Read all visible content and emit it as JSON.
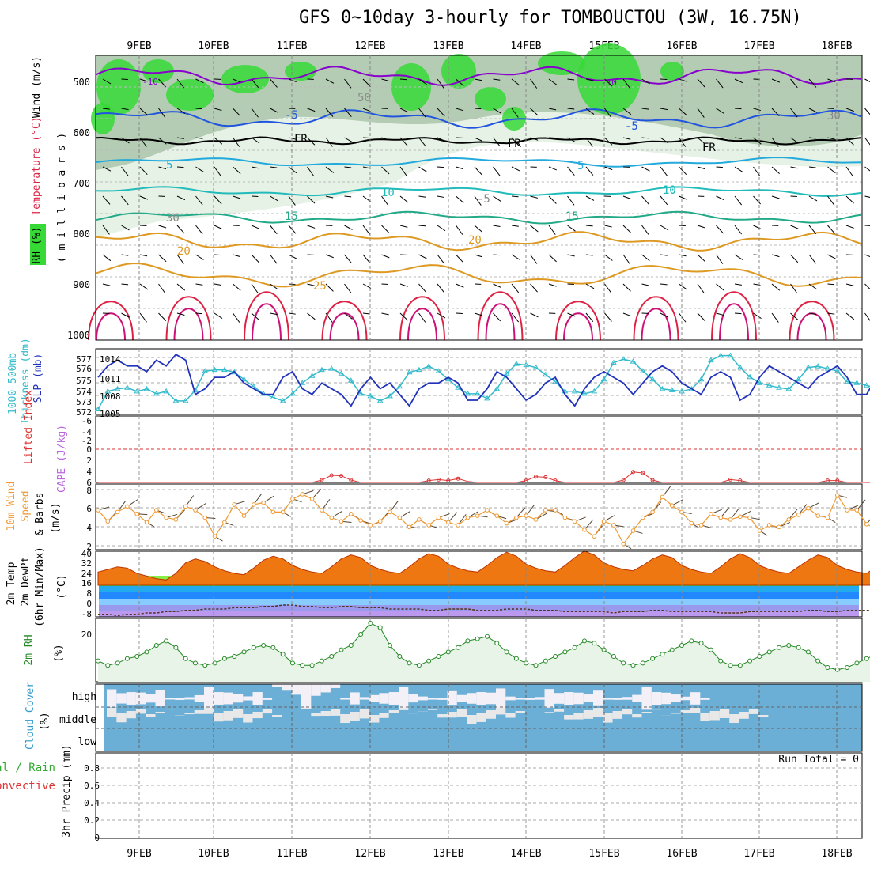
{
  "title": "GFS 0~10day 3-hourly for TOMBOUCTOU (3W, 16.75N)",
  "dates": [
    "9FEB",
    "10FEB",
    "11FEB",
    "12FEB",
    "13FEB",
    "14FEB",
    "15FEB",
    "16FEB",
    "17FEB",
    "18FEB"
  ],
  "colors": {
    "rh_fill_light": "#e6f2e6",
    "rh_fill_mid": "#b4ccb4",
    "rh_fill_green": "#36d936",
    "temp_purple": "#8800cc",
    "temp_blue": "#2255dd",
    "temp_lightblue": "#22aadd",
    "temp_teal": "#22bbbb",
    "temp_green": "#22aa88",
    "temp_orange": "#dd9922",
    "temp_red": "#dd2244",
    "slp": "#2233bb",
    "thickness": "#33bbcc",
    "wind10m": "#ee9933",
    "rh2m": "#228822",
    "cloud": "#6baed6",
    "cape_axis": "#dd3333"
  },
  "panels": {
    "upper": {
      "yaxis_label": "(millibars)",
      "side_labels": [
        "Wind (m/s)",
        "Temperature (°C)",
        "RH (%)"
      ],
      "ticks": [
        "500",
        "600",
        "700",
        "800",
        "900",
        "1000"
      ],
      "contour_labels": [
        "-10",
        "-5",
        "FR",
        "5",
        "10",
        "15",
        "20",
        "25",
        "30",
        "50",
        "10",
        "-5",
        "FR",
        "5",
        "10",
        "15",
        "20",
        "-10",
        "30",
        "-5",
        "FR"
      ]
    },
    "slp_thick": {
      "side_labels": [
        "Thickness (dm)",
        "1000-500mb",
        "SLP (mb)"
      ],
      "left_ticks": [
        "577",
        "576",
        "575",
        "574",
        "573",
        "572"
      ],
      "right_ticks": [
        "1014",
        "1011",
        "1008",
        "1005"
      ]
    },
    "cape": {
      "side_labels": [
        "Lifted Index",
        "CAPE (J/kg)"
      ],
      "ticks": [
        "-6",
        "-4",
        "-2",
        "0",
        "2",
        "4",
        "6"
      ]
    },
    "wind10m": {
      "side_labels": [
        "10m Wind",
        "Speed",
        "& Barbs",
        "(m/s)"
      ],
      "ticks": [
        "8",
        "6",
        "4",
        "2"
      ]
    },
    "temp2m": {
      "side_labels": [
        "2m Temp",
        "2m DewPt",
        "(6hr Min/Max)",
        "(°C)"
      ],
      "ticks": [
        "40",
        "32",
        "24",
        "16",
        "8",
        "0",
        "-8"
      ]
    },
    "rh2m": {
      "side_labels": [
        "2m RH",
        "(%)"
      ],
      "ticks": [
        "20"
      ]
    },
    "cloud": {
      "side_labels": [
        "Cloud Cover",
        "(%)"
      ],
      "levels": [
        "high",
        "middle",
        "low"
      ]
    },
    "precip": {
      "side_labels": [
        "Total / Rain",
        "Convective",
        "3hr Precip (mm)"
      ],
      "ticks": [
        "0.8",
        "0.6",
        "0.4",
        "0.2",
        "0"
      ],
      "run_total": "Run Total = 0"
    }
  },
  "chart_data": [
    {
      "type": "line",
      "name": "slp_thickness",
      "x_unit": "3-hourly step from 8FEB 12Z",
      "series": [
        {
          "name": "SLP (mb)",
          "values": [
            1011,
            1013,
            1014,
            1013,
            1013,
            1012,
            1014,
            1013,
            1015,
            1014,
            1008,
            1009,
            1011,
            1011,
            1012,
            1010,
            1009,
            1008,
            1008,
            1011,
            1012,
            1009,
            1008,
            1010,
            1009,
            1008,
            1006,
            1009,
            1011,
            1009,
            1010,
            1008,
            1006,
            1009,
            1010,
            1010,
            1011,
            1010,
            1007,
            1007,
            1009,
            1012,
            1011,
            1009,
            1007,
            1008,
            1010,
            1011,
            1008,
            1006,
            1009,
            1011,
            1012,
            1011,
            1010,
            1008,
            1010,
            1012,
            1013,
            1012,
            1010,
            1009,
            1008,
            1011,
            1012,
            1011,
            1007,
            1008,
            1011,
            1013,
            1012,
            1011,
            1010,
            1009,
            1011,
            1012,
            1013,
            1011,
            1008,
            1008,
            1011,
            1012,
            1011,
            1010,
            1007,
            1008,
            1010,
            1011,
            1010,
            1008,
            1008,
            1007,
            1008,
            1010,
            1011,
            1009,
            1007,
            1008,
            1010,
            1011,
            1010
          ]
        }
      ],
      "series2": [
        {
          "name": "Thickness (dm)",
          "values": [
            572.3,
            573.8,
            574.0,
            574.1,
            573.8,
            574.0,
            573.6,
            573.8,
            573.0,
            573.0,
            573.9,
            575.5,
            575.6,
            575.6,
            575.4,
            574.8,
            574.2,
            573.6,
            573.3,
            573.0,
            573.6,
            574.5,
            575.1,
            575.6,
            575.7,
            575.3,
            574.7,
            573.6,
            573.4,
            573.0,
            573.4,
            574.2,
            575.4,
            575.6,
            575.9,
            575.5,
            574.8,
            574.1,
            573.6,
            573.6,
            573.2,
            574.0,
            575.3,
            576.1,
            576.0,
            575.8,
            575.2,
            574.6,
            573.8,
            573.8,
            573.6,
            573.8,
            574.8,
            576.2,
            576.5,
            576.3,
            575.5,
            574.8,
            574.0,
            573.9,
            573.8,
            574.0,
            574.8,
            576.4,
            576.8,
            576.8,
            575.8,
            575.0,
            574.5,
            574.3,
            574.1,
            574.0,
            574.8,
            575.8,
            575.9,
            575.7,
            575.5,
            574.6,
            574.5,
            574.3,
            574.1,
            574.6,
            575.3,
            576.0,
            575.9,
            575.8,
            575.4,
            574.6,
            574.1,
            574.0,
            574.2,
            574.8,
            575.3,
            575.9,
            576.0,
            575.5,
            575.0,
            574.8,
            574.2,
            574.5,
            574.5
          ]
        }
      ]
    },
    {
      "type": "line",
      "name": "lifted_index",
      "series": [
        {
          "name": "Lifted Index",
          "values": [
            7,
            7,
            7,
            7,
            7,
            7,
            7,
            7,
            7,
            7,
            7,
            7,
            7,
            7,
            7,
            7,
            7,
            7,
            7,
            7,
            7,
            7,
            7,
            6.5,
            5.5,
            5.6,
            6.5,
            7,
            7,
            7,
            7,
            7,
            7,
            7,
            6.6,
            6.4,
            6.6,
            6.2,
            6.8,
            7,
            7,
            7,
            7,
            7,
            6.6,
            5.8,
            5.9,
            6.6,
            7,
            7,
            7,
            7,
            7,
            7,
            6.5,
            4.8,
            5.0,
            6.5,
            7,
            7,
            7,
            7,
            7,
            7,
            7,
            6.4,
            6.6,
            7,
            7,
            7,
            7,
            7,
            7,
            7,
            7,
            6.6,
            6.6,
            7,
            7,
            7,
            7,
            7,
            7,
            7,
            6.7,
            6.7,
            7,
            7,
            7,
            7,
            7,
            7,
            7,
            6.6,
            6.2,
            6.8,
            7,
            7,
            7,
            7,
            7
          ]
        }
      ]
    },
    {
      "type": "line",
      "name": "wind10m_speed",
      "series": [
        {
          "name": "10m Wind Speed (m/s)",
          "values": [
            5.8,
            4.6,
            5.6,
            6.2,
            5.4,
            4.5,
            5.8,
            5.0,
            4.8,
            6.2,
            5.8,
            5.0,
            3.0,
            4.5,
            6.4,
            5.2,
            6.4,
            6.6,
            5.6,
            5.6,
            7.0,
            7.5,
            7.0,
            5.8,
            5.0,
            4.6,
            5.4,
            4.7,
            4.2,
            4.6,
            5.6,
            5.0,
            4.0,
            4.8,
            4.2,
            5.0,
            4.5,
            4.2,
            5.0,
            5.2,
            5.8,
            5.2,
            4.4,
            5.0,
            5.2,
            4.8,
            5.8,
            5.8,
            5.0,
            4.6,
            3.7,
            3.0,
            4.6,
            4.2,
            2.2,
            3.6,
            5.0,
            5.6,
            7.2,
            6.3,
            5.6,
            4.4,
            4.2,
            5.4,
            5.0,
            4.8,
            5.1,
            5.0,
            3.6,
            4.2,
            4.0,
            4.8,
            5.3,
            6.0,
            5.2,
            5.0,
            7.4,
            5.8,
            5.8,
            4.3,
            3.8,
            4.2,
            5.8,
            5.2,
            4.6,
            4.5,
            4.6,
            5.4,
            6.6,
            7.2,
            5.2,
            4.6,
            5.0,
            4.2,
            4.6,
            4.8,
            6.0,
            8.2,
            8.2,
            6.0,
            4.2,
            4.6,
            3.8
          ]
        }
      ]
    },
    {
      "type": "area",
      "name": "temp2m",
      "series": [
        {
          "name": "2m Temp (°C)",
          "values": [
            26,
            28,
            30,
            29,
            25,
            23,
            21,
            20,
            25,
            33,
            36,
            34,
            30,
            27,
            25,
            24,
            29,
            35,
            38,
            36,
            31,
            28,
            26,
            25,
            30,
            36,
            39,
            37,
            31,
            28,
            26,
            25,
            30,
            36,
            40,
            38,
            32,
            29,
            27,
            26,
            31,
            37,
            41,
            38,
            32,
            29,
            27,
            26,
            31,
            37,
            42,
            39,
            33,
            30,
            28,
            27,
            31,
            36,
            39,
            37,
            31,
            28,
            26,
            25,
            30,
            36,
            40,
            37,
            31,
            28,
            26,
            25,
            30,
            35,
            39,
            37,
            31,
            28,
            26,
            25,
            30,
            36,
            40,
            38,
            32,
            29,
            27,
            26,
            31,
            36,
            38,
            36,
            31,
            28,
            26,
            24,
            23
          ]
        },
        {
          "name": "2m DewPt (°C)",
          "values": [
            -6,
            -6,
            -7,
            -6,
            -6,
            -5,
            -5,
            -4,
            -4,
            -3,
            -3,
            -2,
            -2,
            -2,
            -1,
            -1,
            -1,
            0,
            0,
            1,
            1,
            0,
            0,
            -1,
            -1,
            0,
            0,
            -1,
            -1,
            -1,
            -2,
            -2,
            -2,
            -2,
            -3,
            -3,
            -2,
            -2,
            -2,
            -3,
            -3,
            -3,
            -2,
            -2,
            -2,
            -3,
            -3,
            -3,
            -4,
            -4,
            -4,
            -4,
            -4,
            -5,
            -4,
            -4,
            -4,
            -3,
            -3,
            -4,
            -4,
            -4,
            -4,
            -4,
            -5,
            -5,
            -5,
            -4,
            -4,
            -4,
            -4,
            -4,
            -4,
            -3,
            -3,
            -4,
            -4,
            -3,
            -3,
            -3,
            -3,
            -4,
            -4,
            -4,
            -5,
            -5,
            -4,
            -4,
            -4,
            -4,
            -4,
            -4,
            -4,
            -4,
            -3,
            -3,
            -3,
            -3,
            -3,
            -4
          ]
        }
      ],
      "ylim": [
        -8,
        40
      ]
    },
    {
      "type": "line",
      "name": "rh2m",
      "series": [
        {
          "name": "2m RH (%)",
          "values": [
            8,
            6,
            7,
            9,
            10,
            12,
            15,
            17,
            14,
            9,
            7,
            6,
            7,
            9,
            10,
            12,
            14,
            15,
            14,
            11,
            7,
            6,
            6,
            8,
            10,
            13,
            15,
            20,
            25,
            23,
            15,
            10,
            7,
            6,
            8,
            10,
            12,
            14,
            17,
            18,
            19,
            16,
            12,
            9,
            7,
            6,
            8,
            10,
            12,
            14,
            17,
            16,
            13,
            10,
            7,
            6,
            7,
            9,
            11,
            13,
            15,
            17,
            16,
            13,
            8,
            6,
            6,
            8,
            10,
            12,
            14,
            15,
            14,
            12,
            8,
            5,
            4,
            5,
            7,
            9,
            11,
            12,
            11,
            9,
            6,
            4,
            5,
            6,
            8,
            10,
            12,
            11,
            9,
            6,
            5,
            6,
            7,
            9,
            11,
            12,
            14
          ]
        }
      ]
    },
    {
      "type": "table",
      "name": "precip",
      "series": [
        {
          "name": "3hr Precip (mm)",
          "values": [
            0
          ]
        }
      ],
      "ylim": [
        0,
        0.9
      ]
    }
  ]
}
